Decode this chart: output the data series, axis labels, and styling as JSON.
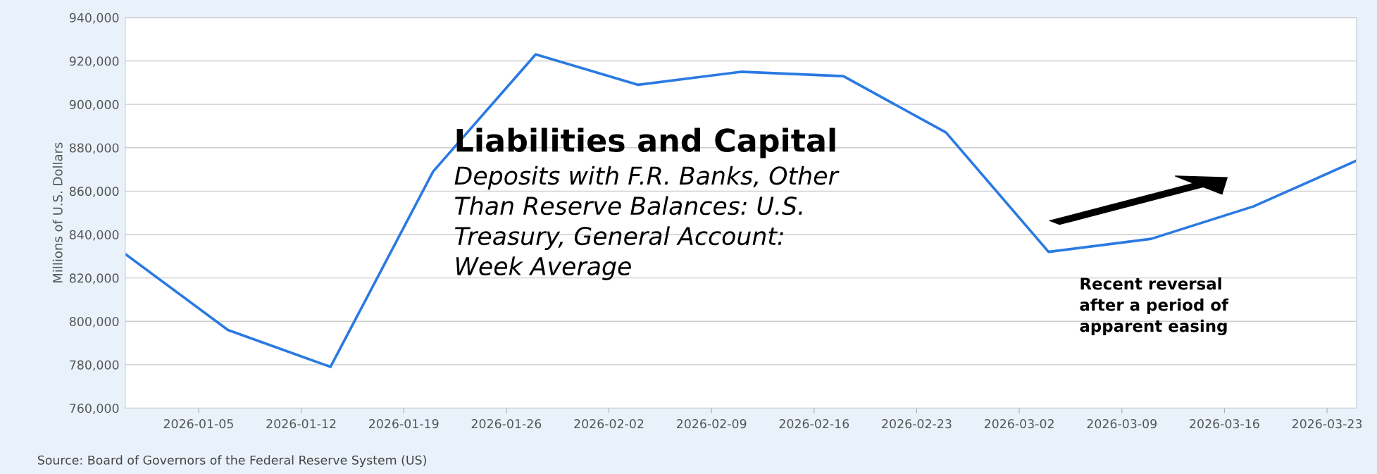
{
  "chart_data": {
    "type": "line",
    "title": "Liabilities and Capital",
    "subtitle": "Deposits with F.R. Banks, Other\nThan Reserve Balances: U.S.\nTreasury, General Account:\nWeek Average",
    "ylabel": "Millions of U.S. Dollars",
    "x": [
      "2025-12-31",
      "2026-01-07",
      "2026-01-14",
      "2026-01-21",
      "2026-01-28",
      "2026-02-04",
      "2026-02-11",
      "2026-02-18",
      "2026-02-25",
      "2026-03-04",
      "2026-03-11",
      "2026-03-18",
      "2026-03-25"
    ],
    "series": [
      {
        "color": "#2a7ae2",
        "values": [
          831000,
          796000,
          779000,
          869000,
          923000,
          909000,
          915000,
          913000,
          887000,
          832000,
          838000,
          853000,
          874000
        ]
      }
    ],
    "xlim": [
      "2025-12-31",
      "2026-03-25"
    ],
    "xticks": [
      "2026-01-05",
      "2026-01-12",
      "2026-01-19",
      "2026-01-26",
      "2026-02-02",
      "2026-02-09",
      "2026-02-16",
      "2026-02-23",
      "2026-03-02",
      "2026-03-09",
      "2026-03-16",
      "2026-03-23"
    ],
    "ylim": [
      760000,
      940000
    ],
    "yticks": [
      {
        "value": 760000,
        "label": "760,000"
      },
      {
        "value": 780000,
        "label": "780,000"
      },
      {
        "value": 800000,
        "label": "800,000"
      },
      {
        "value": 820000,
        "label": "820,000"
      },
      {
        "value": 840000,
        "label": "840,000"
      },
      {
        "value": 860000,
        "label": "860,000"
      },
      {
        "value": 880000,
        "label": "880,000"
      },
      {
        "value": 900000,
        "label": "900,000"
      },
      {
        "value": 920000,
        "label": "920,000"
      },
      {
        "value": 940000,
        "label": "940,000"
      }
    ],
    "grid": "y",
    "legend": false,
    "marker": "none",
    "line_style": "solid",
    "annotations": [
      "Recent reversal\nafter a period of\napparent easing",
      "Source: Board of Governors of the Federal Reserve System (US)"
    ]
  }
}
